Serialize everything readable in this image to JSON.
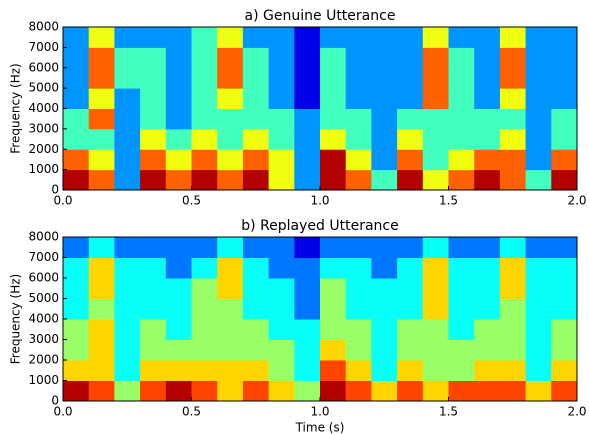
{
  "chart_data": [
    {
      "type": "heatmap",
      "title": "a) Genuine Utterance",
      "ylabel": "Frequency (Hz)",
      "xbins": [
        0,
        0.1,
        0.2,
        0.3,
        0.4,
        0.5,
        0.6,
        0.7,
        0.8,
        0.9,
        1.0,
        1.1,
        1.2,
        1.3,
        1.4,
        1.5,
        1.6,
        1.7,
        1.8,
        1.9,
        2.0
      ],
      "ybins": [
        0,
        1000,
        2000,
        3000,
        4000,
        5000,
        6000,
        7000,
        8000
      ],
      "z": [
        [
          9,
          8,
          5,
          9,
          8,
          9,
          8,
          9,
          7,
          5,
          9,
          8,
          6,
          9,
          7,
          8,
          9,
          8,
          6,
          9
        ],
        [
          8,
          7,
          5,
          8,
          7,
          8,
          7,
          8,
          7,
          5,
          9,
          7,
          5,
          8,
          6,
          7,
          8,
          8,
          5,
          8
        ],
        [
          6,
          6,
          5,
          7,
          6,
          7,
          6,
          7,
          6,
          5,
          7,
          6,
          5,
          7,
          6,
          6,
          6,
          7,
          5,
          6
        ],
        [
          6,
          8,
          5,
          6,
          5,
          6,
          6,
          6,
          6,
          5,
          6,
          6,
          5,
          6,
          6,
          6,
          6,
          6,
          5,
          6
        ],
        [
          5,
          7,
          5,
          6,
          5,
          6,
          7,
          6,
          5,
          4,
          6,
          5,
          5,
          5,
          8,
          6,
          5,
          7,
          5,
          5
        ],
        [
          5,
          8,
          6,
          6,
          5,
          6,
          8,
          6,
          5,
          4,
          6,
          5,
          5,
          5,
          8,
          6,
          5,
          8,
          5,
          5
        ],
        [
          5,
          8,
          6,
          6,
          5,
          6,
          8,
          6,
          5,
          4,
          6,
          5,
          5,
          5,
          8,
          6,
          5,
          8,
          5,
          5
        ],
        [
          5,
          7,
          5,
          5,
          5,
          6,
          7,
          5,
          5,
          4,
          5,
          5,
          5,
          5,
          7,
          5,
          5,
          7,
          5,
          5
        ]
      ],
      "xlim": [
        0,
        2.0
      ],
      "ylim": [
        0,
        8000
      ],
      "xticks": [
        {
          "value": 0,
          "label": "0.0"
        },
        {
          "value": 0.5,
          "label": "0.5"
        },
        {
          "value": 1,
          "label": "1.0"
        },
        {
          "value": 1.5,
          "label": "1.5"
        },
        {
          "value": 2,
          "label": "2.0"
        }
      ],
      "yticks": [
        0,
        1000,
        2000,
        3000,
        4000,
        5000,
        6000,
        7000,
        8000
      ],
      "colormap": "jet"
    },
    {
      "type": "heatmap",
      "title": "b) Replayed Utterance",
      "ylabel": "Frequency (Hz)",
      "xlabel": "Time (s)",
      "xbins": [
        0,
        0.1,
        0.2,
        0.3,
        0.4,
        0.5,
        0.6,
        0.7,
        0.8,
        0.9,
        1.0,
        1.1,
        1.2,
        1.3,
        1.4,
        1.5,
        1.6,
        1.7,
        1.8,
        1.9,
        2.0
      ],
      "ybins": [
        0,
        1000,
        2000,
        3000,
        4000,
        5000,
        6000,
        7000,
        8000
      ],
      "z": [
        [
          9,
          8,
          6,
          8,
          9,
          8,
          7,
          8,
          7,
          6,
          9,
          8,
          7,
          8,
          7,
          8,
          8,
          8,
          7,
          8
        ],
        [
          7,
          7,
          5,
          7,
          7,
          7,
          7,
          7,
          6,
          5,
          8,
          7,
          5,
          7,
          6,
          6,
          7,
          7,
          5,
          7
        ],
        [
          6,
          7,
          5,
          6,
          6,
          6,
          6,
          6,
          6,
          5,
          7,
          6,
          5,
          6,
          6,
          6,
          6,
          6,
          5,
          6
        ],
        [
          6,
          7,
          5,
          6,
          5,
          6,
          6,
          6,
          5,
          5,
          6,
          6,
          5,
          6,
          6,
          5,
          6,
          6,
          5,
          6
        ],
        [
          5,
          6,
          5,
          5,
          5,
          6,
          6,
          5,
          5,
          4,
          6,
          5,
          5,
          5,
          7,
          5,
          5,
          6,
          5,
          5
        ],
        [
          5,
          7,
          5,
          5,
          5,
          6,
          7,
          5,
          5,
          4,
          6,
          5,
          5,
          5,
          7,
          5,
          5,
          7,
          5,
          5
        ],
        [
          5,
          7,
          5,
          5,
          4,
          5,
          7,
          5,
          4,
          4,
          5,
          5,
          4,
          5,
          7,
          5,
          5,
          7,
          5,
          5
        ],
        [
          4,
          5,
          4,
          4,
          4,
          4,
          5,
          4,
          4,
          3,
          4,
          4,
          4,
          4,
          5,
          4,
          4,
          5,
          4,
          4
        ]
      ],
      "xlim": [
        0,
        2.0
      ],
      "ylim": [
        0,
        8000
      ],
      "xticks": [
        {
          "value": 0,
          "label": "0.0"
        },
        {
          "value": 0.5,
          "label": "0.5"
        },
        {
          "value": 1,
          "label": "1.0"
        },
        {
          "value": 1.5,
          "label": "1.5"
        },
        {
          "value": 2,
          "label": "2.0"
        }
      ],
      "yticks": [
        0,
        1000,
        2000,
        3000,
        4000,
        5000,
        6000,
        7000,
        8000
      ],
      "colormap": "jet"
    }
  ]
}
